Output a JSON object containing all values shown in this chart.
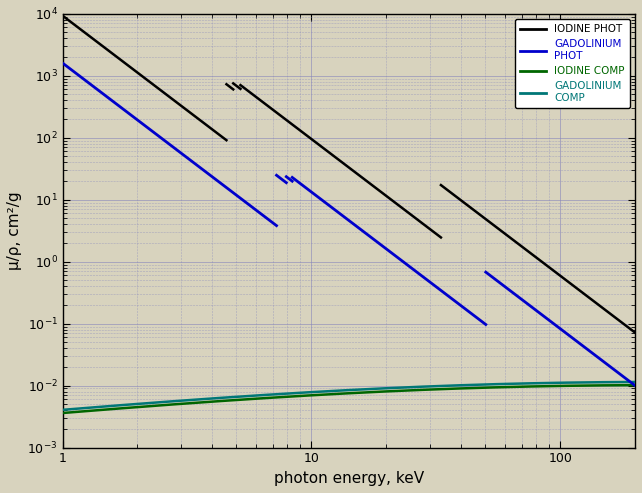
{
  "title": "",
  "xlabel": "photon energy, keV",
  "ylabel": "μ/ρ, cm²/g",
  "xlim": [
    1,
    200
  ],
  "ylim": [
    0.001,
    10000.0
  ],
  "bg_color": "#d8d3be",
  "legend_labels": [
    "IODINE PHOT",
    "GADOLINIUM\nPHOT",
    "IODINE COMP",
    "GADOLINIUM\nCOMP"
  ],
  "legend_colors": [
    "black",
    "#0000cc",
    "#006600",
    "#007777"
  ],
  "line_colors": {
    "iodine_phot": "black",
    "gad_phot": "#0000cc",
    "iodine_comp": "#006600",
    "gad_comp": "#007777"
  },
  "iodine_K_edge": 33.17,
  "iodine_L3_edge": 4.557,
  "iodine_L2_edge": 4.852,
  "iodine_L1_edge": 5.188,
  "gad_K_edge": 50.24,
  "gad_L3_edge": 7.243,
  "gad_L2_edge": 7.93,
  "gad_L1_edge": 8.376,
  "grid_color": "#8888bb",
  "grid_minor_color": "#aaaacc"
}
